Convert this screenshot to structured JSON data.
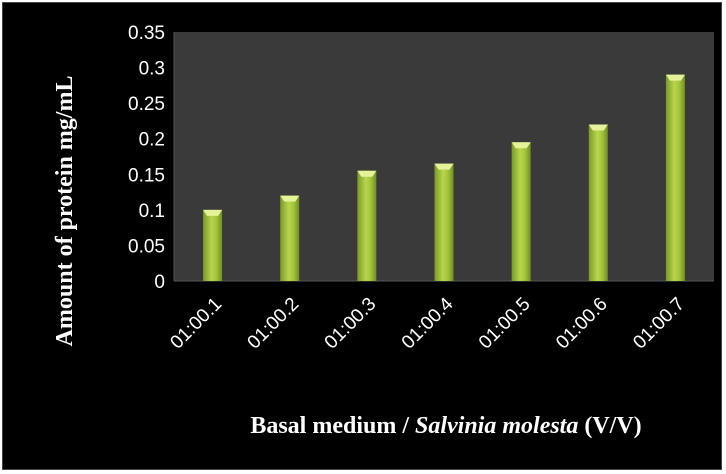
{
  "chart_data": {
    "type": "bar",
    "categories": [
      "01:00.1",
      "01:00.2",
      "01:00.3",
      "01:00.4",
      "01:00.5",
      "01:00.6",
      "01:00.7"
    ],
    "values": [
      0.1,
      0.12,
      0.155,
      0.165,
      0.195,
      0.22,
      0.29
    ],
    "title": "",
    "xlabel_parts": [
      "Basal medium / ",
      "Salvinia molesta",
      " (V/V)"
    ],
    "ylabel": "Amount of protein mg/mL",
    "ylim": [
      0,
      0.35
    ],
    "yticks": [
      "0",
      "0.05",
      "0.1",
      "0.15",
      "0.2",
      "0.25",
      "0.3",
      "0.35"
    ],
    "grid": false,
    "legend": "none",
    "colors": {
      "background": "#000000",
      "plot_area": "#3a3a3a",
      "bar_top": "#e6f29a",
      "bar_mid": "#a9c93f",
      "bar_dark": "#6f8f22",
      "text": "#ffffff"
    }
  }
}
